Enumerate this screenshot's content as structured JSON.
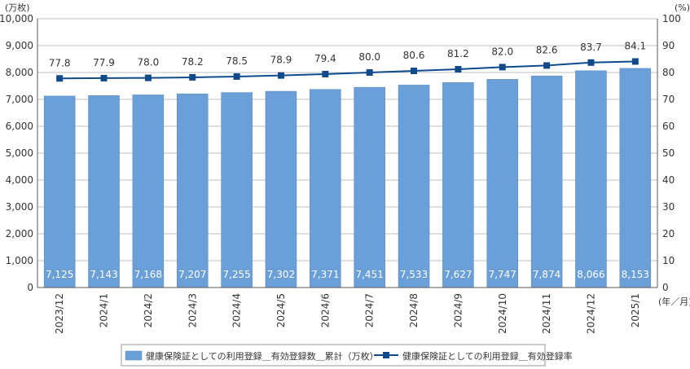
{
  "chart_data": {
    "type": "bar",
    "categories": [
      "2023/12",
      "2024/1",
      "2024/2",
      "2024/3",
      "2024/4",
      "2024/5",
      "2024/6",
      "2024/7",
      "2024/8",
      "2024/9",
      "2024/10",
      "2024/11",
      "2024/12",
      "2025/1"
    ],
    "series": [
      {
        "name": "健康保険証としての利用登録＿有効登録数＿累計（万枚）",
        "type": "bar",
        "axis": "left",
        "color": "#6a9fd8",
        "values": [
          7125,
          7143,
          7168,
          7207,
          7255,
          7302,
          7371,
          7451,
          7533,
          7627,
          7747,
          7874,
          8066,
          8153
        ],
        "labels": [
          "7,125",
          "7,143",
          "7,168",
          "7,207",
          "7,255",
          "7,302",
          "7,371",
          "7,451",
          "7,533",
          "7,627",
          "7,747",
          "7,874",
          "8,066",
          "8,153"
        ]
      },
      {
        "name": "健康保険証としての利用登録＿有効登録率",
        "type": "line",
        "axis": "right",
        "color": "#114a8b",
        "values": [
          77.8,
          77.9,
          78.0,
          78.2,
          78.5,
          78.9,
          79.4,
          80.0,
          80.6,
          81.2,
          82.0,
          82.6,
          83.7,
          84.1
        ],
        "labels": [
          "77.8",
          "77.9",
          "78.0",
          "78.2",
          "78.5",
          "78.9",
          "79.4",
          "80.0",
          "80.6",
          "81.2",
          "82.0",
          "82.6",
          "83.7",
          "84.1"
        ]
      }
    ],
    "y_left": {
      "unit": "(万枚)",
      "min": 0,
      "max": 10000,
      "ticks": [
        0,
        1000,
        2000,
        3000,
        4000,
        5000,
        6000,
        7000,
        8000,
        9000,
        10000
      ],
      "tick_labels": [
        "0",
        "1,000",
        "2,000",
        "3,000",
        "4,000",
        "5,000",
        "6,000",
        "7,000",
        "8,000",
        "9,000",
        "10,000"
      ]
    },
    "y_right": {
      "unit": "(%)",
      "min": 0,
      "max": 100,
      "ticks": [
        0,
        10,
        20,
        30,
        40,
        50,
        60,
        70,
        80,
        90,
        100
      ],
      "tick_labels": [
        "0",
        "10",
        "20",
        "30",
        "40",
        "50",
        "60",
        "70",
        "80",
        "90",
        "100"
      ]
    },
    "x_unit": "(年／月)",
    "grid": true,
    "legend_position": "bottom"
  }
}
